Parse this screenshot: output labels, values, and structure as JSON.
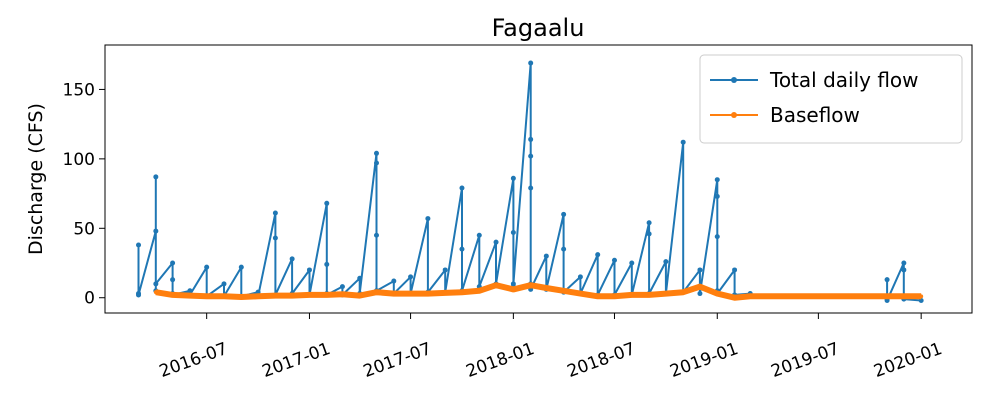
{
  "chart_data": {
    "type": "line",
    "title": "Fagaalu",
    "y_label": "Discharge (CFS)",
    "xlim": [
      "2016-01",
      "2020-04"
    ],
    "ylim": [
      -11,
      182
    ],
    "xticks": [
      "2016-07",
      "2017-01",
      "2017-07",
      "2018-01",
      "2018-07",
      "2019-01",
      "2019-07",
      "2020-01"
    ],
    "yticks": [
      0,
      50,
      100,
      150
    ],
    "legend": "upper right",
    "series": [
      {
        "name": "Total daily flow",
        "color": "#1f77b4",
        "line_width": 2,
        "marker_size": 2.5,
        "x": [
          "2016-03",
          "2016-03",
          "2016-03",
          "2016-04",
          "2016-04",
          "2016-04",
          "2016-04",
          "2016-05",
          "2016-05",
          "2016-05",
          "2016-05",
          "2016-06",
          "2016-06",
          "2016-07",
          "2016-07",
          "2016-08",
          "2016-08",
          "2016-09",
          "2016-09",
          "2016-10",
          "2016-10",
          "2016-11",
          "2016-11",
          "2016-11",
          "2016-12",
          "2016-12",
          "2017-01",
          "2017-01",
          "2017-02",
          "2017-02",
          "2017-02",
          "2017-02",
          "2017-03",
          "2017-03",
          "2017-04",
          "2017-04",
          "2017-05",
          "2017-05",
          "2017-05",
          "2017-05",
          "2017-05",
          "2017-06",
          "2017-06",
          "2017-07",
          "2017-07",
          "2017-08",
          "2017-08",
          "2017-09",
          "2017-09",
          "2017-10",
          "2017-10",
          "2017-10",
          "2017-10",
          "2017-11",
          "2017-11",
          "2017-12",
          "2017-12",
          "2018-01",
          "2018-01",
          "2018-01",
          "2018-01",
          "2018-02",
          "2018-02",
          "2018-02",
          "2018-02",
          "2018-02",
          "2018-02",
          "2018-02",
          "2018-03",
          "2018-03",
          "2018-04",
          "2018-04",
          "2018-04",
          "2018-04",
          "2018-05",
          "2018-05",
          "2018-06",
          "2018-06",
          "2018-07",
          "2018-07",
          "2018-08",
          "2018-08",
          "2018-09",
          "2018-09",
          "2018-09",
          "2018-10",
          "2018-10",
          "2018-11",
          "2018-11",
          "2018-12",
          "2018-12",
          "2019-01",
          "2019-01",
          "2019-01",
          "2019-01",
          "2019-01",
          "2019-02",
          "2019-02",
          "2019-03",
          "2019-07",
          "2019-11",
          "2019-11",
          "2019-11",
          "2019-12",
          "2019-12",
          "2019-12",
          "2019-12",
          "2020-01"
        ],
        "values": [
          3,
          38,
          2,
          48,
          5,
          87,
          10,
          25,
          3,
          13,
          2,
          5,
          2,
          22,
          1,
          10,
          1,
          22,
          1,
          4,
          1,
          61,
          43,
          2,
          28,
          3,
          20,
          2,
          68,
          3,
          24,
          2,
          8,
          2,
          14,
          3,
          104,
          5,
          97,
          45,
          5,
          12,
          3,
          15,
          3,
          57,
          4,
          20,
          4,
          79,
          5,
          35,
          5,
          45,
          8,
          40,
          10,
          86,
          8,
          47,
          10,
          169,
          10,
          114,
          102,
          8,
          79,
          6,
          30,
          6,
          60,
          5,
          35,
          4,
          15,
          3,
          31,
          2,
          27,
          2,
          25,
          2,
          54,
          46,
          3,
          26,
          3,
          112,
          4,
          20,
          3,
          85,
          73,
          5,
          44,
          3,
          20,
          2,
          3,
          null,
          -1,
          13,
          -2,
          25,
          0,
          20,
          -1,
          -2
        ]
      },
      {
        "name": "Baseflow",
        "color": "#ff7f0e",
        "line_width": 6,
        "marker_size": 2,
        "x": [
          "2016-04",
          "2016-05",
          "2016-06",
          "2016-07",
          "2016-08",
          "2016-09",
          "2016-10",
          "2016-11",
          "2016-12",
          "2017-01",
          "2017-02",
          "2017-03",
          "2017-04",
          "2017-05",
          "2017-06",
          "2017-07",
          "2017-08",
          "2017-09",
          "2017-10",
          "2017-11",
          "2017-12",
          "2018-01",
          "2018-02",
          "2018-03",
          "2018-04",
          "2018-05",
          "2018-06",
          "2018-07",
          "2018-08",
          "2018-09",
          "2018-10",
          "2018-11",
          "2018-12",
          "2019-01",
          "2019-02",
          "2019-03",
          "2019-05",
          "2019-07",
          "2019-09",
          "2019-11",
          "2020-01"
        ],
        "values": [
          4,
          2,
          1.5,
          1,
          1,
          0.5,
          1,
          1.5,
          1.5,
          2,
          2,
          2.5,
          1.5,
          4,
          3,
          3,
          3,
          3.5,
          4,
          5,
          9,
          6,
          9,
          7,
          5,
          3,
          1,
          1,
          2,
          2,
          3,
          4,
          8,
          3,
          0,
          1,
          1,
          1,
          1,
          1,
          1
        ]
      }
    ]
  }
}
